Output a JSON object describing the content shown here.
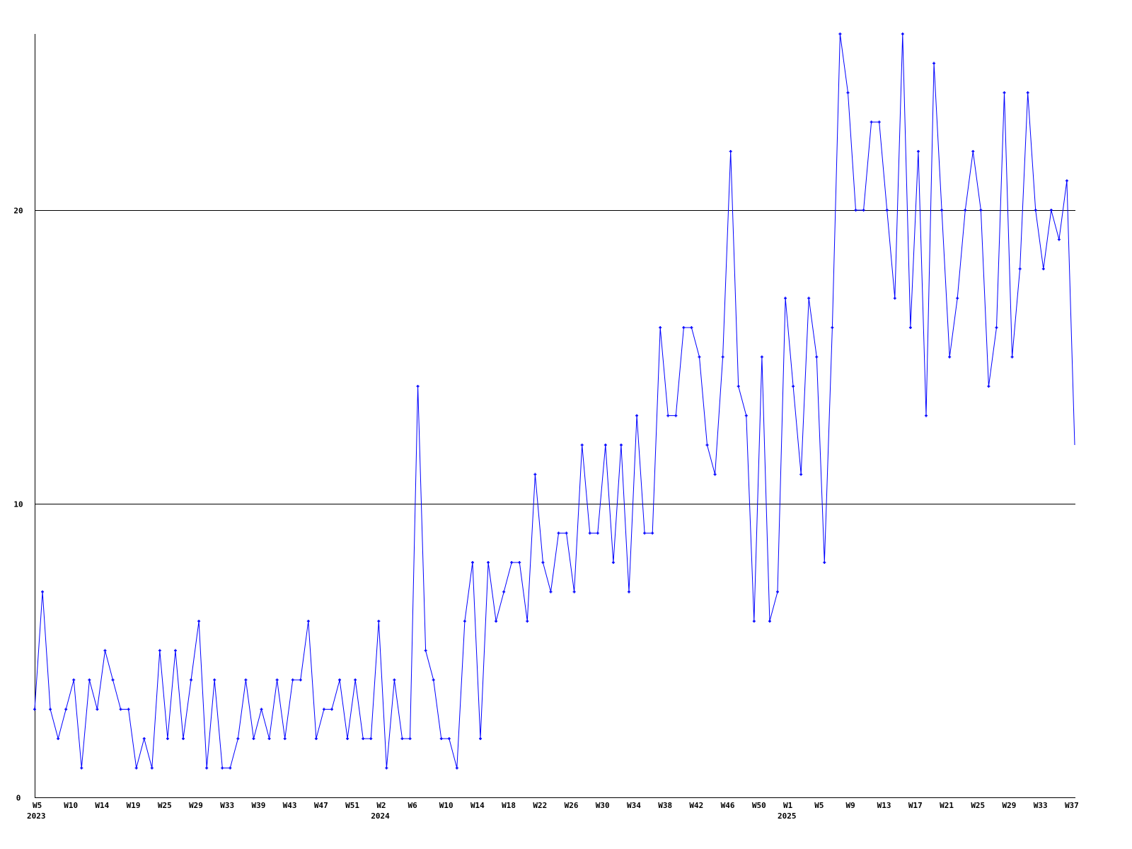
{
  "chart_data": {
    "type": "line",
    "title": "",
    "xlabel": "",
    "ylabel": "",
    "ylim": [
      0,
      26
    ],
    "yticks": [
      0,
      10,
      20
    ],
    "grid": "horizontal lines at y ticks",
    "line_color": "#0000ff",
    "x_tick_labels": [
      "W5",
      "W10",
      "W14",
      "W19",
      "W25",
      "W29",
      "W33",
      "W39",
      "W43",
      "W47",
      "W51",
      "W2",
      "W6",
      "W10",
      "W14",
      "W18",
      "W22",
      "W26",
      "W30",
      "W34",
      "W38",
      "W42",
      "W46",
      "W50",
      "W1",
      "W5",
      "W9",
      "W13",
      "W17",
      "W21",
      "W25",
      "W29",
      "W33",
      "W37"
    ],
    "x_tick_every_n_points": 4,
    "year_labels": [
      {
        "label": "2023",
        "at_tick": "W5"
      },
      {
        "label": "2024",
        "at_tick": "W2"
      },
      {
        "label": "2025",
        "at_tick": "W1"
      }
    ],
    "series": [
      {
        "values": [
          3,
          7,
          3,
          2,
          3,
          4,
          1,
          4,
          3,
          5,
          4,
          3,
          3,
          1,
          2,
          1,
          5,
          2,
          5,
          2,
          4,
          6,
          1,
          4,
          1,
          1,
          2,
          4,
          2,
          3,
          2,
          4,
          2,
          4,
          4,
          6,
          2,
          3,
          3,
          4,
          2,
          4,
          2,
          2,
          6,
          1,
          4,
          2,
          2,
          14,
          5,
          4,
          2,
          2,
          1,
          6,
          8,
          2,
          8,
          6,
          7,
          8,
          8,
          6,
          11,
          8,
          7,
          9,
          9,
          7,
          12,
          9,
          9,
          12,
          8,
          12,
          7,
          13,
          9,
          9,
          16,
          13,
          13,
          16,
          16,
          15,
          12,
          11,
          15,
          22,
          14,
          13,
          6,
          15,
          6,
          7,
          17,
          14,
          11,
          17,
          15,
          8,
          16,
          26,
          24,
          20,
          20,
          23,
          23,
          20,
          17,
          26,
          16,
          22,
          13,
          25,
          20,
          15,
          17,
          20,
          22,
          20,
          14,
          16,
          24,
          15,
          18,
          24,
          20,
          18,
          20,
          19,
          21,
          12
        ]
      }
    ]
  }
}
